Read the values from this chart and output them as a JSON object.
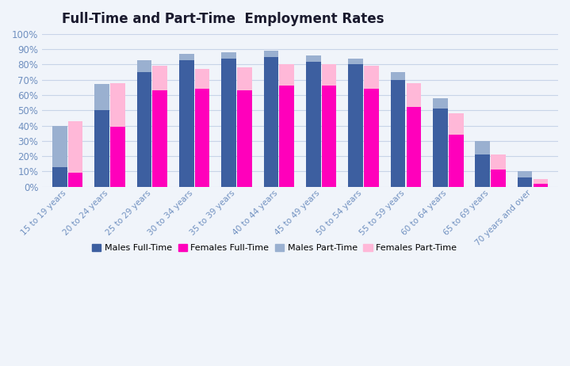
{
  "title": "Full-Time and Part-Time  Employment Rates",
  "categories": [
    "15 to 19 years",
    "20 to 24 years",
    "25 to 29 years",
    "30 to 34 years",
    "35 to 39 years",
    "40 to 44 years",
    "45 to 49 years",
    "50 to 54 years",
    "55 to 59 years",
    "60 to 64 years",
    "65 to 69 years",
    "70 years and over"
  ],
  "males_fulltime": [
    13,
    50,
    75,
    83,
    84,
    85,
    82,
    80,
    70,
    51,
    21,
    6
  ],
  "females_fulltime": [
    9,
    39,
    63,
    64,
    63,
    66,
    66,
    64,
    52,
    34,
    11,
    2
  ],
  "males_parttime": [
    40,
    67,
    83,
    87,
    88,
    89,
    86,
    84,
    75,
    58,
    30,
    10
  ],
  "females_parttime": [
    43,
    68,
    79,
    77,
    78,
    80,
    80,
    79,
    68,
    48,
    21,
    5
  ],
  "color_males_ft": "#3d5fa0",
  "color_females_ft": "#ff00bb",
  "color_males_pt": "#9ab0d0",
  "color_females_pt": "#ffb8d8",
  "background_color": "#f0f4fa",
  "grid_color": "#c8d4e8",
  "axis_color": "#7090c0",
  "ylim": [
    0,
    100
  ],
  "yticks": [
    0,
    10,
    20,
    30,
    40,
    50,
    60,
    70,
    80,
    90,
    100
  ],
  "legend_labels": [
    "Males Full-Time",
    "Females Full-Time",
    "Males Part-Time",
    "Females Part-Time"
  ]
}
